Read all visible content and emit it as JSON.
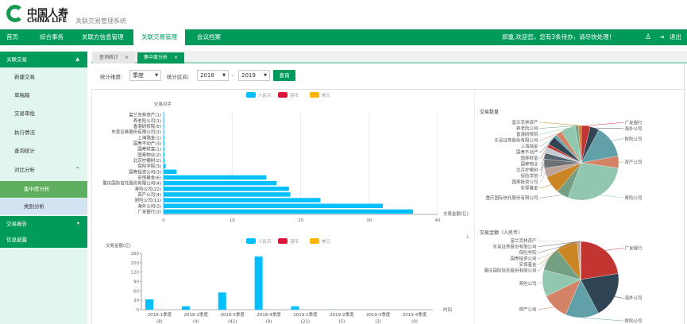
{
  "header": {
    "logo_cn": "中国人寿",
    "logo_en": "CHINA LIFE",
    "system_title": "关联交易管理系统"
  },
  "nav": {
    "items": [
      "首页",
      "综合事务",
      "关联方信息管理",
      "关联交易管理",
      "会议档案"
    ],
    "active": "关联交易管理",
    "welcome": "郑重,欢迎您，您有3条待办，请尽快处理！",
    "logout": "退出"
  },
  "sidebar": {
    "group1": "关联交易",
    "items": [
      "新建交易",
      "草稿箱",
      "交易审批",
      "执行情况",
      "查询统计",
      "对比分析"
    ],
    "sub_items": [
      "集中度分析",
      "类别分析"
    ],
    "group2": "交易报告",
    "group3": "信息披露"
  },
  "tabs": [
    {
      "label": "查询统计"
    },
    {
      "label": "集中度分析"
    }
  ],
  "filter": {
    "dimension_label": "统计维度:",
    "dimension_value": "季度",
    "range_label": "统计区间:",
    "from": "2018",
    "sep": "-",
    "to": "2019",
    "query": "查询"
  },
  "colors": {
    "brand": "#009b5b",
    "rmb": "#00bfff",
    "hkd": "#dc143c",
    "usd": "#ffb400"
  },
  "chart_data": [
    {
      "type": "bar",
      "orientation": "horizontal",
      "legend": [
        "人民币",
        "港币",
        "美元"
      ],
      "ylabel": "交易对手",
      "xlabel": "交易金额(亿)",
      "xlim": [
        0,
        40
      ],
      "xticks": [
        "0",
        "10",
        "20",
        "30",
        "40"
      ],
      "grid": true,
      "categories": [
        "富兰克林资产(1)",
        "养老险公司(1)",
        "香港研修院(5)",
        "东吴证券股份有限公司(2)",
        "上海瑞金(1)",
        "国寿不动产(3)",
        "国寿财富(1)",
        "国寿物业(2)",
        "北京柠檬树(2)",
        "保险学院(3)",
        "国寿投资公司(3)",
        "安保基金(6)",
        "重庆国际信托股份有限公司(4)",
        "寿险公司(22)",
        "资产公司(4)",
        "财险公司(11)",
        "海外公司(3)",
        "广发银行(3)"
      ],
      "series": [
        {
          "name": "人民币",
          "values": [
            0.02,
            0.02,
            0.05,
            0.05,
            0.1,
            0.1,
            0.1,
            0.15,
            0.15,
            0.3,
            1.9,
            15.0,
            16.5,
            18.3,
            18.5,
            22.9,
            32.0,
            36.4
          ]
        }
      ]
    },
    {
      "type": "bar",
      "legend": [
        "人民币",
        "港币",
        "美元"
      ],
      "ylabel": "交易金额(亿)",
      "xlabel": "时间",
      "ylim": [
        0,
        180
      ],
      "yticks": [
        "0",
        "30",
        "60",
        "90",
        "120",
        "150",
        "180"
      ],
      "categories": [
        "2018-1季度",
        "2018-2季度",
        "2018-3季度",
        "2018-4季度",
        "2019-1季度",
        "2019-2季度",
        "2019-3季度",
        "2019-4季度"
      ],
      "counts": [
        "(8)",
        "(4)",
        "(42)",
        "(9)",
        "(21)",
        "(5)",
        "(2)",
        "(0)"
      ],
      "series": [
        {
          "name": "人民币",
          "values": [
            33,
            11,
            55,
            170,
            11,
            0.5,
            0,
            0
          ]
        }
      ]
    },
    {
      "type": "pie",
      "title": "交易数量",
      "categories": [
        "广发银行",
        "海外公司",
        "财险公司",
        "资产公司",
        "寿险公司",
        "重庆国际信托股份有限公司",
        "安保基金",
        "国寿投资公司",
        "保险学院",
        "北京柠檬树",
        "国寿物业",
        "国寿财富",
        "国寿不动产",
        "上海瑞金",
        "东吴证券股份有限公司",
        "香港研修院",
        "养老险公司",
        "富兰克林资产"
      ],
      "values": [
        3,
        3,
        11,
        4,
        22,
        4,
        6,
        3,
        3,
        2,
        2,
        1,
        3,
        1,
        2,
        5,
        1,
        1
      ]
    },
    {
      "type": "pie",
      "title": "交易金额（人民币）",
      "categories": [
        "广发银行",
        "海外公司",
        "财险公司",
        "资产公司",
        "寿险公司",
        "重庆国际信托股份有限公司",
        "安保基金",
        "国寿投资公司",
        "保险学院",
        "东吴证券股份有限公司",
        "富兰克林资产"
      ],
      "values": [
        36.4,
        32.0,
        22.9,
        18.5,
        18.3,
        16.5,
        15.0,
        1.9,
        0.3,
        0.05,
        0.02
      ]
    }
  ]
}
